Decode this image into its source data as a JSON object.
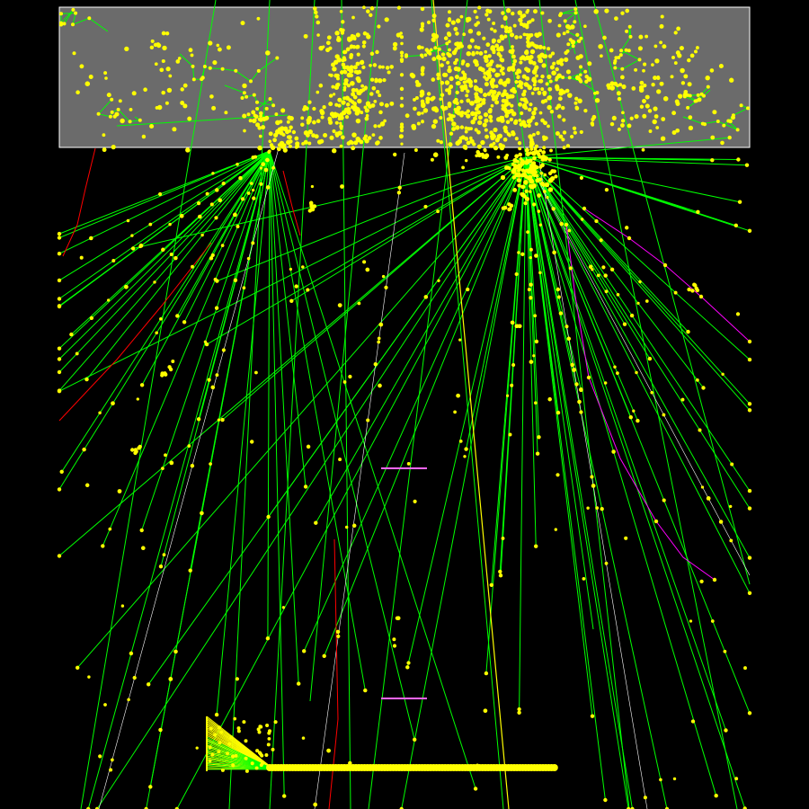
{
  "scene": {
    "background": "#000000",
    "detector_volume": {
      "label": "",
      "fill": "#6b6b6b",
      "stroke": "#ffffff"
    },
    "colors": {
      "step_point": "#ffff00",
      "neutral_track": "#00ff00",
      "negative_track": "#ff0000",
      "positive_track": "#ff00ff",
      "photon_track": "#ffffff",
      "primary_beam": "#ffff00"
    },
    "track_legend": [],
    "marker_segments": [
      {
        "name": "magenta-marker-upper",
        "color": "#ff66ff"
      },
      {
        "name": "magenta-marker-lower",
        "color": "#ff66ff"
      }
    ]
  }
}
